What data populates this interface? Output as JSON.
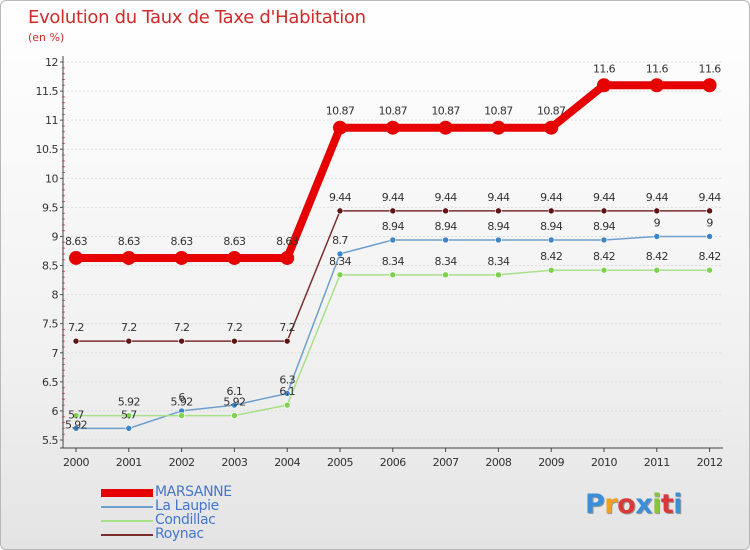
{
  "title": "Evolution du Taux de Taxe d'Habitation",
  "subtitle": "(en %)",
  "logo": {
    "text": "Proxiti",
    "colors": [
      "#3a8fd8",
      "#f0a020",
      "#d83a3a",
      "#3a8fd8",
      "#8ac43a",
      "#d83a3a",
      "#3a8fd8"
    ]
  },
  "chart_data": {
    "type": "line",
    "title": "Evolution du Taux de Taxe d'Habitation",
    "ylabel": "(en %)",
    "xlabel": "",
    "ylim": [
      5.5,
      12
    ],
    "yticks": [
      "5.5",
      "6",
      "6.5",
      "7",
      "7.5",
      "8",
      "8.5",
      "9",
      "9.5",
      "10",
      "10.5",
      "11",
      "11.5",
      "12"
    ],
    "x": [
      "2000",
      "2001",
      "2002",
      "2003",
      "2004",
      "2005",
      "2006",
      "2007",
      "2008",
      "2009",
      "2010",
      "2011",
      "2012"
    ],
    "grid": "horizontal",
    "series": [
      {
        "name": "MARSANNE",
        "color": "#e60000",
        "width": 8,
        "marker": 7,
        "values": [
          8.63,
          8.63,
          8.63,
          8.63,
          8.63,
          10.87,
          10.87,
          10.87,
          10.87,
          10.87,
          11.6,
          11.6,
          11.6
        ],
        "labels": [
          "8.63",
          "8.63",
          "8.63",
          "8.63",
          "8.63",
          "10.87",
          "10.87",
          "10.87",
          "10.87",
          "10.87",
          "11.6",
          "11.6",
          "11.6"
        ]
      },
      {
        "name": "La Laupie",
        "color": "#6f9fcc",
        "marker_fill": "#3d85c6",
        "width": 1.5,
        "marker": 3,
        "values": [
          5.7,
          5.7,
          6.0,
          6.1,
          6.3,
          8.7,
          8.94,
          8.94,
          8.94,
          8.94,
          8.94,
          9.0,
          9.0
        ],
        "labels": [
          "5.7",
          "5.7",
          "6",
          "6.1",
          "6.3",
          "8.7",
          "8.94",
          "8.94",
          "8.94",
          "8.94",
          "8.94",
          "9",
          "9"
        ]
      },
      {
        "name": "Condillac",
        "color": "#a9e08a",
        "marker_fill": "#7ed14c",
        "width": 1.5,
        "marker": 3,
        "values": [
          5.92,
          5.92,
          5.92,
          5.92,
          6.1,
          8.34,
          8.34,
          8.34,
          8.34,
          8.42,
          8.42,
          8.42,
          8.42
        ],
        "labels": [
          "5.92",
          "5.92",
          "5.92",
          "5.92",
          "6.1",
          "8.34",
          "8.34",
          "8.34",
          "8.34",
          "8.42",
          "8.42",
          "8.42",
          "8.42"
        ]
      },
      {
        "name": "Roynac",
        "color": "#7a2e2e",
        "marker_fill": "#5e1414",
        "width": 1.5,
        "marker": 3,
        "values": [
          7.2,
          7.2,
          7.2,
          7.2,
          7.2,
          9.44,
          9.44,
          9.44,
          9.44,
          9.44,
          9.44,
          9.44,
          9.44
        ],
        "labels": [
          "7.2",
          "7.2",
          "7.2",
          "7.2",
          "7.2",
          "9.44",
          "9.44",
          "9.44",
          "9.44",
          "9.44",
          "9.44",
          "9.44",
          "9.44"
        ]
      }
    ],
    "legend": "bottom-left"
  }
}
